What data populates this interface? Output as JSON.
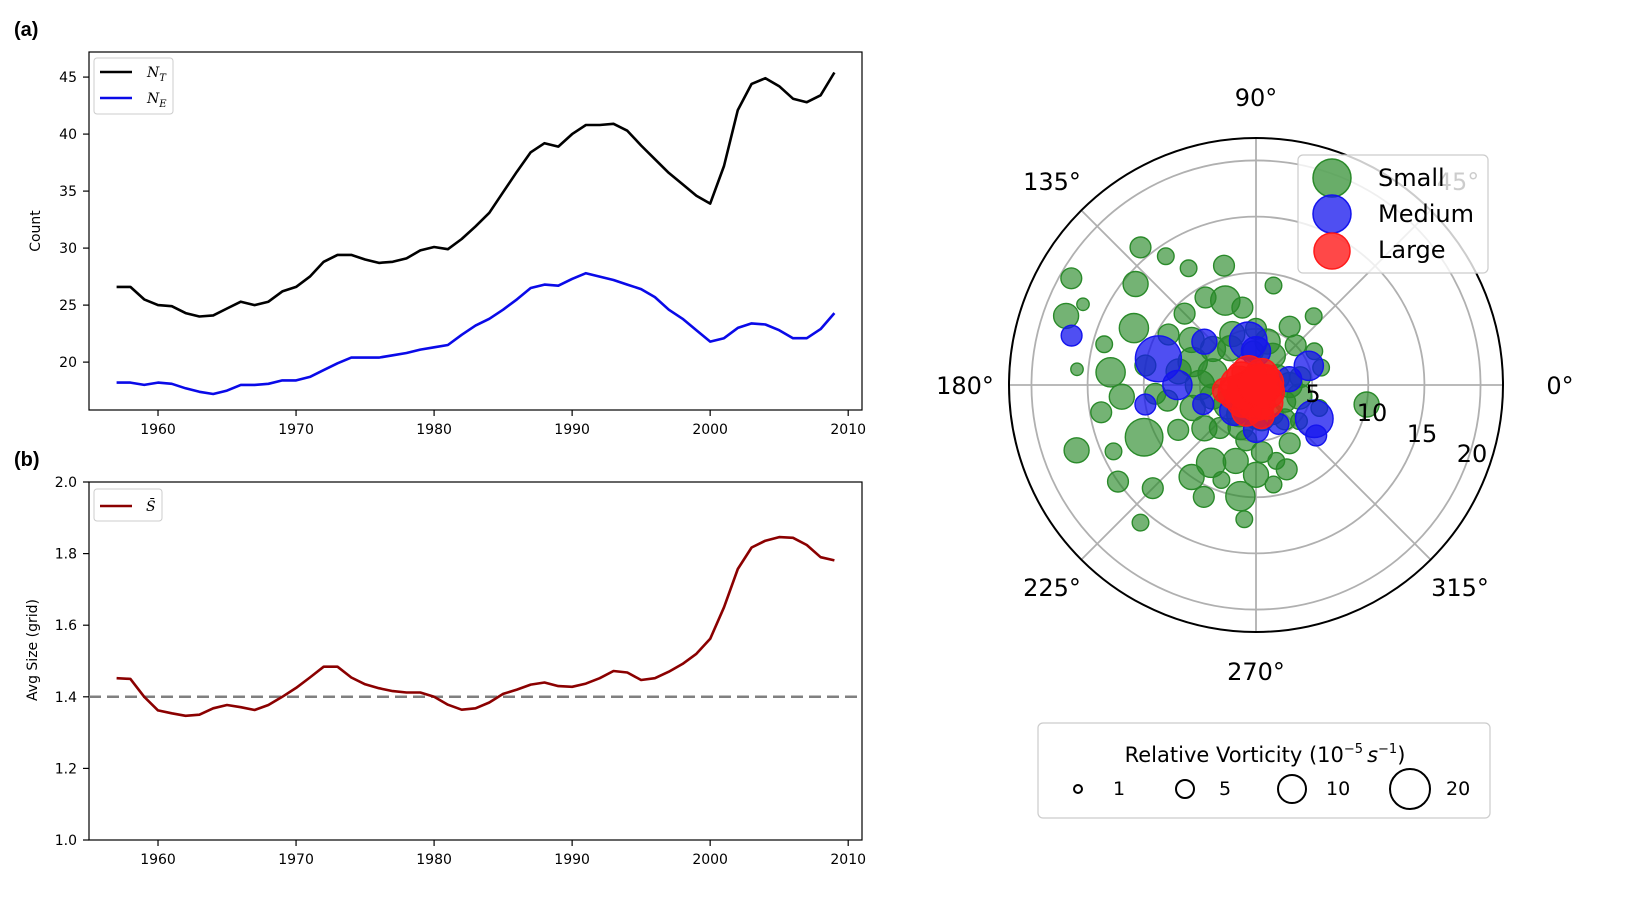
{
  "chart_data": [
    {
      "type": "line",
      "panel_label": "(a)",
      "ylabel": "Count",
      "xlim": [
        1955,
        2011
      ],
      "ylim": [
        15.8,
        47.2
      ],
      "xticks": [
        1960,
        1970,
        1980,
        1990,
        2000,
        2010
      ],
      "yticks": [
        20,
        25,
        30,
        35,
        40,
        45
      ],
      "legend_position": "upper-left",
      "x": [
        1957,
        1958,
        1959,
        1960,
        1961,
        1962,
        1963,
        1964,
        1965,
        1966,
        1967,
        1968,
        1969,
        1970,
        1971,
        1972,
        1973,
        1974,
        1975,
        1976,
        1977,
        1978,
        1979,
        1980,
        1981,
        1982,
        1983,
        1984,
        1985,
        1986,
        1987,
        1988,
        1989,
        1990,
        1991,
        1992,
        1993,
        1994,
        1995,
        1996,
        1997,
        1998,
        1999,
        2000,
        2001,
        2002,
        2003,
        2004,
        2005,
        2006,
        2007,
        2008,
        2009
      ],
      "series": [
        {
          "name": "N_T",
          "label_main": "N",
          "label_sub": "T",
          "color": "#000000",
          "values": [
            26.6,
            26.6,
            25.5,
            25.0,
            24.9,
            24.3,
            24.0,
            24.1,
            24.7,
            25.3,
            25.0,
            25.3,
            26.2,
            26.6,
            27.5,
            28.8,
            29.4,
            29.4,
            29.0,
            28.7,
            28.8,
            29.1,
            29.8,
            30.1,
            29.9,
            30.8,
            31.9,
            33.1,
            34.9,
            36.7,
            38.4,
            39.2,
            38.9,
            40.0,
            40.8,
            40.8,
            40.9,
            40.3,
            39.0,
            37.8,
            36.6,
            35.6,
            34.6,
            33.9,
            37.2,
            42.1,
            44.4,
            44.9,
            44.2,
            43.1,
            42.8,
            43.4,
            45.4
          ]
        },
        {
          "name": "N_E",
          "label_main": "N",
          "label_sub": "E",
          "color": "#0a0ae8",
          "values": [
            18.2,
            18.2,
            18.0,
            18.2,
            18.1,
            17.7,
            17.4,
            17.2,
            17.5,
            18.0,
            18.0,
            18.1,
            18.4,
            18.4,
            18.7,
            19.3,
            19.9,
            20.4,
            20.4,
            20.4,
            20.6,
            20.8,
            21.1,
            21.3,
            21.5,
            22.4,
            23.2,
            23.8,
            24.6,
            25.5,
            26.5,
            26.8,
            26.7,
            27.3,
            27.8,
            27.5,
            27.2,
            26.8,
            26.4,
            25.7,
            24.6,
            23.8,
            22.8,
            21.8,
            22.1,
            23.0,
            23.4,
            23.3,
            22.8,
            22.1,
            22.1,
            22.9,
            24.3
          ]
        }
      ]
    },
    {
      "type": "line",
      "panel_label": "(b)",
      "ylabel": "Avg Size (grid)",
      "xlim": [
        1955,
        2011
      ],
      "ylim": [
        1.0,
        2.0
      ],
      "xticks": [
        1960,
        1970,
        1980,
        1990,
        2000,
        2010
      ],
      "yticks": [
        "1.0",
        "1.2",
        "1.4",
        "1.6",
        "1.8",
        "2.0"
      ],
      "reference_line": 1.4,
      "legend_position": "upper-left",
      "x": [
        1957,
        1958,
        1959,
        1960,
        1961,
        1962,
        1963,
        1964,
        1965,
        1966,
        1967,
        1968,
        1969,
        1970,
        1971,
        1972,
        1973,
        1974,
        1975,
        1976,
        1977,
        1978,
        1979,
        1980,
        1981,
        1982,
        1983,
        1984,
        1985,
        1986,
        1987,
        1988,
        1989,
        1990,
        1991,
        1992,
        1993,
        1994,
        1995,
        1996,
        1997,
        1998,
        1999,
        2000,
        2001,
        2002,
        2003,
        2004,
        2005,
        2006,
        2007,
        2008,
        2009
      ],
      "series": [
        {
          "name": "S̄",
          "label_main": "S̄",
          "color": "#8b0000",
          "values": [
            1.452,
            1.45,
            1.4,
            1.362,
            1.354,
            1.347,
            1.35,
            1.368,
            1.377,
            1.371,
            1.363,
            1.377,
            1.4,
            1.425,
            1.454,
            1.484,
            1.484,
            1.454,
            1.435,
            1.424,
            1.416,
            1.412,
            1.412,
            1.4,
            1.378,
            1.364,
            1.368,
            1.384,
            1.408,
            1.42,
            1.434,
            1.44,
            1.43,
            1.428,
            1.437,
            1.452,
            1.472,
            1.468,
            1.447,
            1.452,
            1.47,
            1.492,
            1.52,
            1.562,
            1.65,
            1.757,
            1.817,
            1.836,
            1.846,
            1.844,
            1.824,
            1.79,
            1.781
          ]
        }
      ]
    },
    {
      "type": "scatter",
      "projection": "polar",
      "theta_ticks": [
        "0°",
        "45°",
        "90°",
        "135°",
        "180°",
        "225°",
        "270°",
        "315°"
      ],
      "r_ticks": [
        "5",
        "10",
        "15",
        "20"
      ],
      "rlim": [
        0,
        22
      ],
      "legend_position": "upper-right",
      "series": [
        {
          "name": "Small",
          "color": "#2a8a2a",
          "points": [
            {
              "theta": 150,
              "r": 19,
              "v": 4
            },
            {
              "theta": 160,
              "r": 18,
              "v": 5
            },
            {
              "theta": 130,
              "r": 16,
              "v": 4
            },
            {
              "theta": 125,
              "r": 14,
              "v": 3
            },
            {
              "theta": 140,
              "r": 14,
              "v": 5
            },
            {
              "theta": 155,
              "r": 12,
              "v": 6
            },
            {
              "theta": 165,
              "r": 14,
              "v": 3
            },
            {
              "theta": 170,
              "r": 10,
              "v": 4
            },
            {
              "theta": 175,
              "r": 13,
              "v": 6
            },
            {
              "theta": 185,
              "r": 12,
              "v": 5
            },
            {
              "theta": 190,
              "r": 14,
              "v": 4
            },
            {
              "theta": 200,
              "r": 17,
              "v": 5
            },
            {
              "theta": 205,
              "r": 11,
              "v": 8
            },
            {
              "theta": 215,
              "r": 15,
              "v": 4
            },
            {
              "theta": 225,
              "r": 13,
              "v": 4
            },
            {
              "theta": 230,
              "r": 16,
              "v": 3
            },
            {
              "theta": 235,
              "r": 10,
              "v": 5
            },
            {
              "theta": 240,
              "r": 8,
              "v": 6
            },
            {
              "theta": 245,
              "r": 11,
              "v": 4
            },
            {
              "theta": 255,
              "r": 7,
              "v": 5
            },
            {
              "theta": 262,
              "r": 10,
              "v": 6
            },
            {
              "theta": 270,
              "r": 8,
              "v": 5
            },
            {
              "theta": 275,
              "r": 6,
              "v": 4
            },
            {
              "theta": 285,
              "r": 7,
              "v": 3
            },
            {
              "theta": 300,
              "r": 6,
              "v": 4
            },
            {
              "theta": 320,
              "r": 5,
              "v": 3
            },
            {
              "theta": 345,
              "r": 4,
              "v": 5
            },
            {
              "theta": 350,
              "r": 10,
              "v": 5
            },
            {
              "theta": 10,
              "r": 4,
              "v": 4
            },
            {
              "theta": 30,
              "r": 6,
              "v": 3
            },
            {
              "theta": 45,
              "r": 5,
              "v": 4
            },
            {
              "theta": 60,
              "r": 6,
              "v": 4
            },
            {
              "theta": 75,
              "r": 4,
              "v": 5
            },
            {
              "theta": 90,
              "r": 5,
              "v": 4
            },
            {
              "theta": 100,
              "r": 7,
              "v": 4
            },
            {
              "theta": 105,
              "r": 11,
              "v": 4
            },
            {
              "theta": 110,
              "r": 8,
              "v": 6
            },
            {
              "theta": 115,
              "r": 5,
              "v": 5
            },
            {
              "theta": 120,
              "r": 9,
              "v": 4
            },
            {
              "theta": 135,
              "r": 9,
              "v": 4
            },
            {
              "theta": 145,
              "r": 7,
              "v": 5
            },
            {
              "theta": 150,
              "r": 9,
              "v": 4
            },
            {
              "theta": 160,
              "r": 6,
              "v": 6
            },
            {
              "theta": 170,
              "r": 7,
              "v": 5
            },
            {
              "theta": 180,
              "r": 5,
              "v": 6
            },
            {
              "theta": 190,
              "r": 8,
              "v": 4
            },
            {
              "theta": 200,
              "r": 6,
              "v": 5
            },
            {
              "theta": 210,
              "r": 8,
              "v": 4
            },
            {
              "theta": 220,
              "r": 6,
              "v": 5
            },
            {
              "theta": 230,
              "r": 5,
              "v": 4
            },
            {
              "theta": 250,
              "r": 4,
              "v": 5
            },
            {
              "theta": 260,
              "r": 5,
              "v": 4
            },
            {
              "theta": 280,
              "r": 3,
              "v": 5
            },
            {
              "theta": 300,
              "r": 3,
              "v": 4
            },
            {
              "theta": 330,
              "r": 3,
              "v": 4
            },
            {
              "theta": 0,
              "r": 3,
              "v": 5
            },
            {
              "theta": 20,
              "r": 2,
              "v": 5
            },
            {
              "theta": 60,
              "r": 3,
              "v": 5
            },
            {
              "theta": 95,
              "r": 3,
              "v": 4
            },
            {
              "theta": 125,
              "r": 4,
              "v": 5
            },
            {
              "theta": 140,
              "r": 5,
              "v": 5
            },
            {
              "theta": 165,
              "r": 4,
              "v": 6
            },
            {
              "theta": 195,
              "r": 4,
              "v": 5
            },
            {
              "theta": 215,
              "r": 3,
              "v": 6
            },
            {
              "theta": 240,
              "r": 3,
              "v": 5
            },
            {
              "theta": 270,
              "r": 3,
              "v": 4
            },
            {
              "theta": 310,
              "r": 4,
              "v": 4
            },
            {
              "theta": 340,
              "r": 6,
              "v": 3
            },
            {
              "theta": 120,
              "r": 12,
              "v": 3
            },
            {
              "theta": 155,
              "r": 17,
              "v": 2
            },
            {
              "theta": 175,
              "r": 16,
              "v": 2
            },
            {
              "theta": 185,
              "r": 9,
              "v": 4
            },
            {
              "theta": 205,
              "r": 14,
              "v": 3
            },
            {
              "theta": 250,
              "r": 9,
              "v": 3
            },
            {
              "theta": 265,
              "r": 12,
              "v": 3
            },
            {
              "theta": 280,
              "r": 9,
              "v": 3
            },
            {
              "theta": 290,
              "r": 8,
              "v": 4
            },
            {
              "theta": 15,
              "r": 6,
              "v": 3
            },
            {
              "theta": 50,
              "r": 8,
              "v": 3
            },
            {
              "theta": 80,
              "r": 9,
              "v": 3
            }
          ]
        },
        {
          "name": "Medium",
          "color": "#1414ee",
          "points": [
            {
              "theta": 165,
              "r": 17,
              "v": 4
            },
            {
              "theta": 165,
              "r": 9,
              "v": 10
            },
            {
              "theta": 190,
              "r": 10,
              "v": 4
            },
            {
              "theta": 180,
              "r": 7,
              "v": 6
            },
            {
              "theta": 20,
              "r": 5,
              "v": 6
            },
            {
              "theta": 330,
              "r": 6,
              "v": 8
            },
            {
              "theta": 320,
              "r": 7,
              "v": 4
            },
            {
              "theta": 100,
              "r": 4,
              "v": 8
            },
            {
              "theta": 90,
              "r": 3,
              "v": 6
            },
            {
              "theta": 230,
              "r": 3,
              "v": 6
            },
            {
              "theta": 270,
              "r": 4,
              "v": 5
            },
            {
              "theta": 140,
              "r": 6,
              "v": 5
            },
            {
              "theta": 10,
              "r": 3,
              "v": 5
            },
            {
              "theta": 200,
              "r": 5,
              "v": 4
            },
            {
              "theta": 300,
              "r": 4,
              "v": 4
            }
          ]
        },
        {
          "name": "Large",
          "color": "#ff1a1a",
          "points": [
            {
              "theta": 180,
              "r": 1.5,
              "v": 8
            },
            {
              "theta": 200,
              "r": 2,
              "v": 7
            },
            {
              "theta": 230,
              "r": 1.8,
              "v": 7
            },
            {
              "theta": 270,
              "r": 1.5,
              "v": 8
            },
            {
              "theta": 300,
              "r": 1.8,
              "v": 7
            },
            {
              "theta": 330,
              "r": 1.2,
              "v": 7
            },
            {
              "theta": 10,
              "r": 0.8,
              "v": 8
            },
            {
              "theta": 60,
              "r": 1,
              "v": 7
            },
            {
              "theta": 120,
              "r": 1.3,
              "v": 7
            },
            {
              "theta": 150,
              "r": 1.5,
              "v": 6
            },
            {
              "theta": 250,
              "r": 2.5,
              "v": 6
            },
            {
              "theta": 210,
              "r": 1,
              "v": 8
            },
            {
              "theta": 0,
              "r": 0.3,
              "v": 9
            },
            {
              "theta": 280,
              "r": 2.8,
              "v": 5
            },
            {
              "theta": 190,
              "r": 2.8,
              "v": 5
            }
          ]
        }
      ],
      "size_legend": {
        "title_prefix": "Relative Vorticity (10",
        "title_exp": "−5",
        "title_unit": "s",
        "title_unit_exp": "−1",
        "title_suffix": ")",
        "values": [
          "1",
          "5",
          "10",
          "20"
        ]
      }
    }
  ]
}
